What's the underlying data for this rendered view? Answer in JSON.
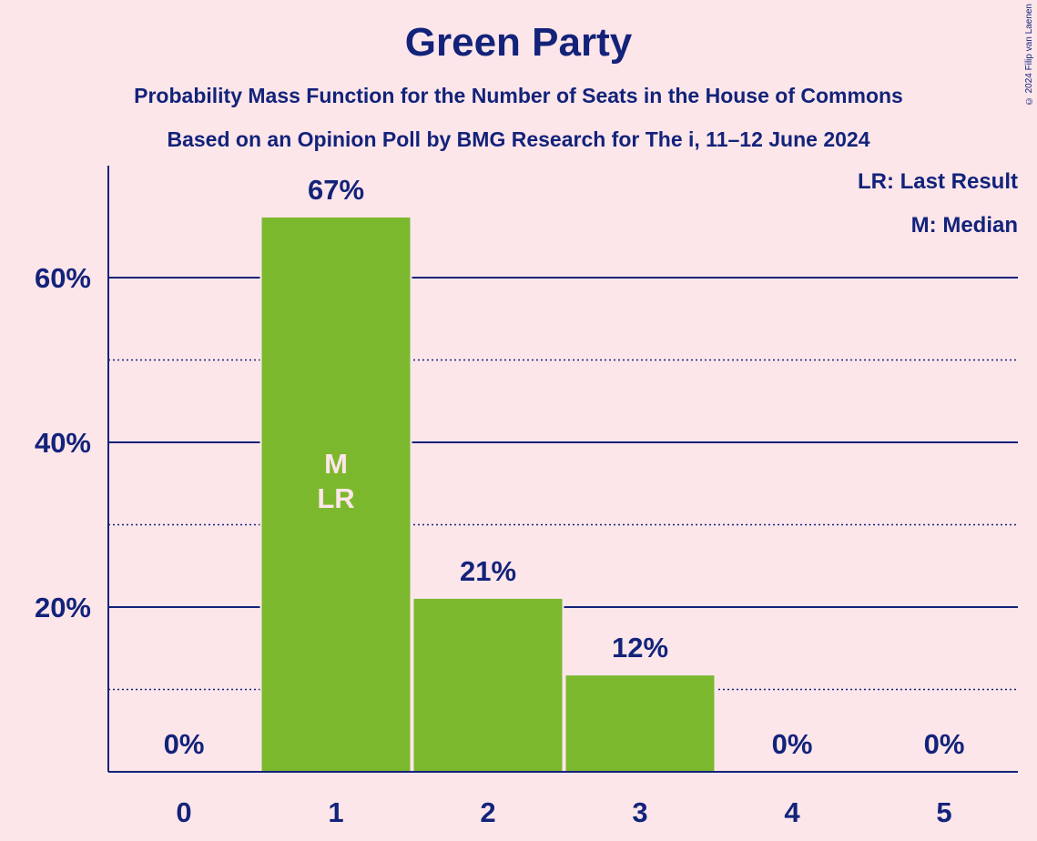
{
  "title": "Green Party",
  "subtitle1": "Probability Mass Function for the Number of Seats in the House of Commons",
  "subtitle2": "Based on an Opinion Poll by BMG Research for The i, 11–12 June 2024",
  "copyright": "© 2024 Filip van Laenen",
  "legend": {
    "last_result": "LR: Last Result",
    "median": "M: Median"
  },
  "colors": {
    "bar": "#7cb82e",
    "text": "#13237a",
    "background": "#fde6ea"
  },
  "chart_data": {
    "type": "bar",
    "categories": [
      "0",
      "1",
      "2",
      "3",
      "4",
      "5"
    ],
    "values": [
      0,
      67.3,
      21,
      11.7,
      0,
      0
    ],
    "data_labels": [
      "0%",
      "67%",
      "21%",
      "12%",
      "0%",
      "0%"
    ],
    "in_bar_labels": [
      "",
      "M\nLR",
      "",
      "",
      "",
      ""
    ],
    "y_ticks": [
      {
        "value": 20,
        "label": "20%"
      },
      {
        "value": 40,
        "label": "40%"
      },
      {
        "value": 60,
        "label": "60%"
      }
    ],
    "minor_gridlines": [
      10,
      30,
      50
    ],
    "ylim": [
      0,
      73.5
    ],
    "grid": true,
    "legend_position": "top-right"
  }
}
